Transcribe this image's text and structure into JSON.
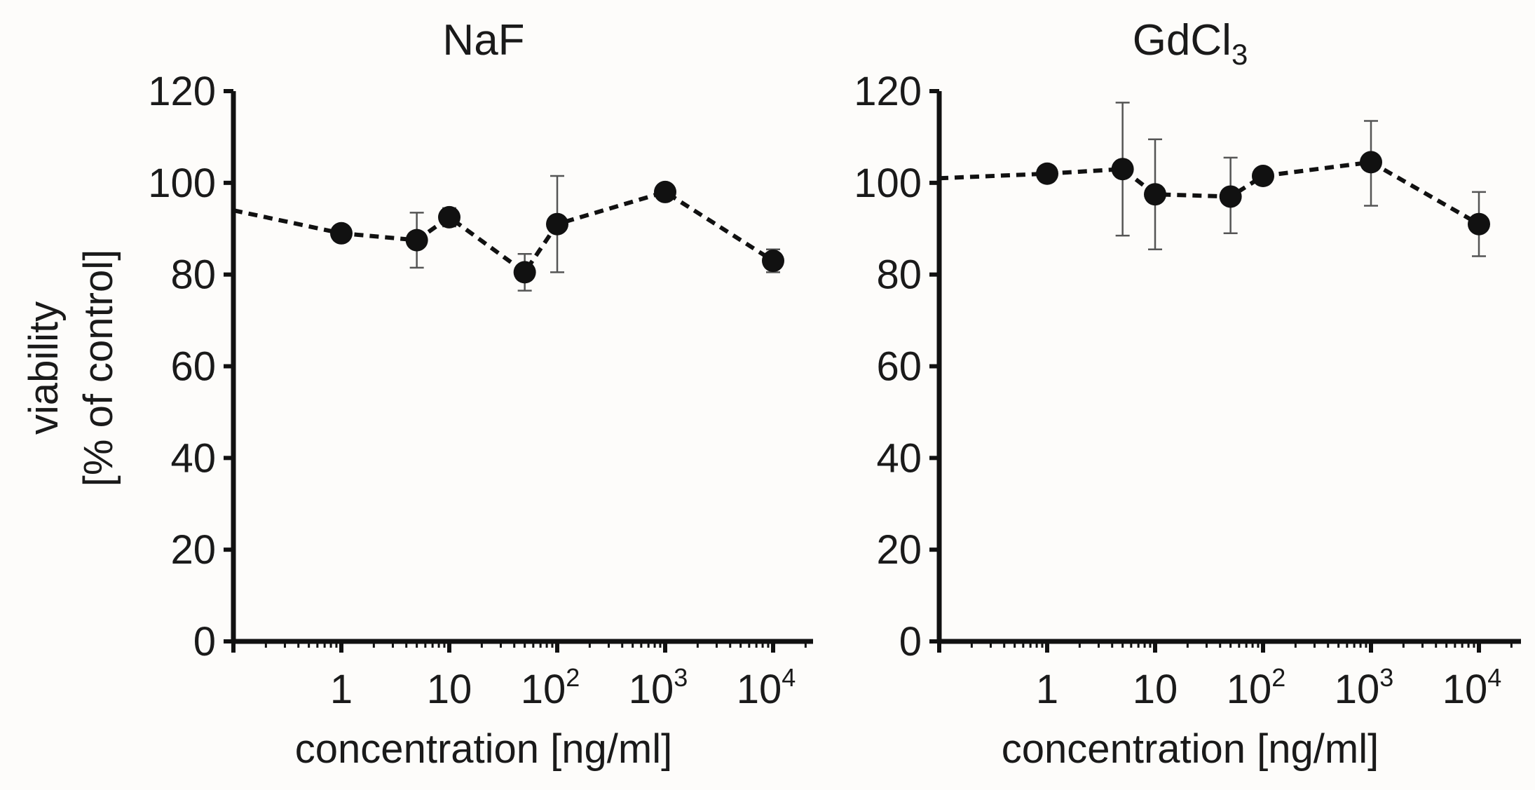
{
  "figure": {
    "ylabel_line1": "viability",
    "ylabel_line2": "[% of control]"
  },
  "chart_data": [
    {
      "type": "line",
      "title": "NaF",
      "title_main": "NaF",
      "title_sub": "",
      "xlabel": "concentration [ng/ml]",
      "ylabel": "viability [% of control]",
      "x_scale": "log",
      "ylim": [
        0,
        120
      ],
      "y_ticks": [
        0,
        20,
        40,
        60,
        80,
        100,
        120
      ],
      "x_ticks": [
        {
          "value": 1,
          "base": "1",
          "exp": ""
        },
        {
          "value": 10,
          "base": "10",
          "exp": ""
        },
        {
          "value": 100,
          "base": "10",
          "exp": "2"
        },
        {
          "value": 1000,
          "base": "10",
          "exp": "3"
        },
        {
          "value": 10000,
          "base": "10",
          "exp": "4"
        }
      ],
      "series": [
        {
          "name": "NaF",
          "control_value": 94,
          "points": [
            {
              "x": 1,
              "y": 89,
              "err_low": 89,
              "err_high": 89
            },
            {
              "x": 5,
              "y": 87.5,
              "err_low": 81.5,
              "err_high": 93.5
            },
            {
              "x": 10,
              "y": 92.5,
              "err_low": 90.5,
              "err_high": 94.5
            },
            {
              "x": 50,
              "y": 80.5,
              "err_low": 76.5,
              "err_high": 84.5
            },
            {
              "x": 100,
              "y": 91,
              "err_low": 80.5,
              "err_high": 101.5
            },
            {
              "x": 1000,
              "y": 98,
              "err_low": 96.5,
              "err_high": 99.5
            },
            {
              "x": 10000,
              "y": 83,
              "err_low": 80.5,
              "err_high": 85.5
            }
          ]
        }
      ]
    },
    {
      "type": "line",
      "title": "GdCl3",
      "title_main": "GdCl",
      "title_sub": "3",
      "xlabel": "concentration [ng/ml]",
      "ylabel": "",
      "x_scale": "log",
      "ylim": [
        0,
        120
      ],
      "y_ticks": [
        0,
        20,
        40,
        60,
        80,
        100,
        120
      ],
      "x_ticks": [
        {
          "value": 1,
          "base": "1",
          "exp": ""
        },
        {
          "value": 10,
          "base": "10",
          "exp": ""
        },
        {
          "value": 100,
          "base": "10",
          "exp": "2"
        },
        {
          "value": 1000,
          "base": "10",
          "exp": "3"
        },
        {
          "value": 10000,
          "base": "10",
          "exp": "4"
        }
      ],
      "series": [
        {
          "name": "GdCl3",
          "control_value": 101,
          "points": [
            {
              "x": 1,
              "y": 102,
              "err_low": 102,
              "err_high": 102
            },
            {
              "x": 5,
              "y": 103,
              "err_low": 88.5,
              "err_high": 117.5
            },
            {
              "x": 10,
              "y": 97.5,
              "err_low": 85.5,
              "err_high": 109.5
            },
            {
              "x": 50,
              "y": 97,
              "err_low": 89,
              "err_high": 105.5
            },
            {
              "x": 100,
              "y": 101.5,
              "err_low": 101.5,
              "err_high": 101.5
            },
            {
              "x": 1000,
              "y": 104.5,
              "err_low": 95,
              "err_high": 113.5
            },
            {
              "x": 10000,
              "y": 91,
              "err_low": 84,
              "err_high": 98
            }
          ]
        }
      ]
    }
  ]
}
